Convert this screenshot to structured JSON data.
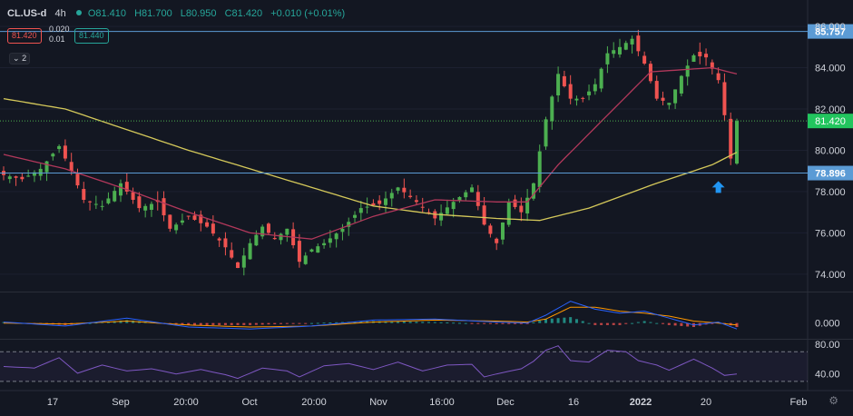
{
  "header": {
    "symbol": "CL.US-d",
    "timeframe": "4h",
    "open": "O81.410",
    "high": "H81.700",
    "low": "L80.950",
    "close": "C81.420",
    "change": "+0.010 (+0.01%)",
    "sell_price": "81.420",
    "buy_price": "81.440",
    "spread_top": "0.020",
    "spread_bottom": "0.01",
    "collapse_label": "2"
  },
  "colors": {
    "background": "#131722",
    "up": "#26a69a",
    "up_candle": "#4caf50",
    "down": "#ef5350",
    "ma_fast": "#b2385b",
    "ma_slow": "#d4c85a",
    "hline": "#5b9bd5",
    "rsi": "#7e57c2",
    "arrow": "#2196f3"
  },
  "chart_data": {
    "type": "candlestick",
    "price_axis_ticks": [
      "86.000",
      "84.000",
      "82.000",
      "80.000",
      "78.000",
      "76.000",
      "74.000"
    ],
    "price_range": [
      73.2,
      86.4
    ],
    "time_labels": [
      "17",
      "Sep",
      "20:00",
      "Oct",
      "20:00",
      "Nov",
      "16:00",
      "Dec",
      "16",
      "2022",
      "20",
      "Feb"
    ],
    "horizontal_lines": [
      {
        "label": "85.757",
        "value": 85.757
      },
      {
        "label": "78.896",
        "value": 78.896
      }
    ],
    "last_price": {
      "label": "81.420",
      "value": 81.42
    },
    "price_path": [
      [
        0,
        78.8
      ],
      [
        3,
        78.6
      ],
      [
        6,
        79.1
      ],
      [
        9,
        80.2
      ],
      [
        11,
        79.0
      ],
      [
        13,
        77.6
      ],
      [
        16,
        77.3
      ],
      [
        19,
        78.4
      ],
      [
        22,
        77.2
      ],
      [
        25,
        77.5
      ],
      [
        27,
        76.2
      ],
      [
        30,
        76.8
      ],
      [
        33,
        76.3
      ],
      [
        36,
        75.3
      ],
      [
        38,
        74.3
      ],
      [
        40,
        75.5
      ],
      [
        42,
        76.3
      ],
      [
        44,
        75.7
      ],
      [
        46,
        76.2
      ],
      [
        48,
        74.6
      ],
      [
        50,
        75.2
      ],
      [
        52,
        75.5
      ],
      [
        55,
        76.2
      ],
      [
        58,
        77.2
      ],
      [
        61,
        77.4
      ],
      [
        64,
        78.2
      ],
      [
        67,
        77.5
      ],
      [
        70,
        76.7
      ],
      [
        73,
        77.5
      ],
      [
        76,
        78.2
      ],
      [
        78,
        76.4
      ],
      [
        80,
        75.5
      ],
      [
        82,
        77.5
      ],
      [
        84,
        77.0
      ],
      [
        86,
        78.4
      ],
      [
        88,
        81.5
      ],
      [
        90,
        83.7
      ],
      [
        92,
        82.5
      ],
      [
        94,
        82.5
      ],
      [
        96,
        83.2
      ],
      [
        98,
        84.7
      ],
      [
        100,
        85.0
      ],
      [
        102,
        85.4
      ],
      [
        104,
        84.2
      ],
      [
        106,
        82.5
      ],
      [
        108,
        82.3
      ],
      [
        110,
        83.6
      ],
      [
        112,
        84.6
      ],
      [
        114,
        84.5
      ],
      [
        116,
        83.4
      ],
      [
        117,
        81.7
      ],
      [
        118,
        79.6
      ],
      [
        119,
        81.42
      ]
    ],
    "ma_fast": [
      [
        0,
        79.8
      ],
      [
        10,
        79.1
      ],
      [
        20,
        78.1
      ],
      [
        30,
        77.0
      ],
      [
        40,
        76.0
      ],
      [
        50,
        75.7
      ],
      [
        60,
        76.8
      ],
      [
        70,
        77.6
      ],
      [
        80,
        77.5
      ],
      [
        85,
        77.5
      ],
      [
        90,
        79.3
      ],
      [
        95,
        80.8
      ],
      [
        100,
        82.3
      ],
      [
        105,
        83.8
      ],
      [
        110,
        83.9
      ],
      [
        115,
        84.0
      ],
      [
        119,
        83.7
      ]
    ],
    "ma_slow": [
      [
        0,
        82.5
      ],
      [
        10,
        82.0
      ],
      [
        20,
        81.0
      ],
      [
        30,
        80.0
      ],
      [
        40,
        79.1
      ],
      [
        50,
        78.2
      ],
      [
        60,
        77.3
      ],
      [
        70,
        76.9
      ],
      [
        80,
        76.7
      ],
      [
        87,
        76.6
      ],
      [
        95,
        77.2
      ],
      [
        105,
        78.3
      ],
      [
        115,
        79.3
      ],
      [
        119,
        79.9
      ]
    ],
    "macd": {
      "axis_label": "0.000",
      "macd_line": [
        [
          0,
          0.1
        ],
        [
          10,
          -0.3
        ],
        [
          20,
          0.5
        ],
        [
          30,
          -0.4
        ],
        [
          40,
          -0.6
        ],
        [
          50,
          -0.3
        ],
        [
          60,
          0.3
        ],
        [
          70,
          0.4
        ],
        [
          80,
          0.1
        ],
        [
          85,
          0.0
        ],
        [
          88,
          0.8
        ],
        [
          92,
          2.2
        ],
        [
          96,
          1.4
        ],
        [
          100,
          1.0
        ],
        [
          104,
          1.2
        ],
        [
          108,
          0.5
        ],
        [
          112,
          -0.2
        ],
        [
          116,
          0.1
        ],
        [
          119,
          -0.6
        ]
      ],
      "signal_line": [
        [
          0,
          0.0
        ],
        [
          10,
          -0.1
        ],
        [
          20,
          0.2
        ],
        [
          30,
          -0.2
        ],
        [
          40,
          -0.4
        ],
        [
          50,
          -0.3
        ],
        [
          60,
          0.1
        ],
        [
          70,
          0.3
        ],
        [
          80,
          0.2
        ],
        [
          85,
          0.1
        ],
        [
          88,
          0.4
        ],
        [
          92,
          1.6
        ],
        [
          96,
          1.6
        ],
        [
          100,
          1.2
        ],
        [
          104,
          1.0
        ],
        [
          108,
          0.7
        ],
        [
          112,
          0.2
        ],
        [
          116,
          0.0
        ],
        [
          119,
          -0.2
        ]
      ],
      "range": [
        -1.5,
        3.0
      ]
    },
    "rsi": {
      "ticks": [
        "80.00",
        "40.00"
      ],
      "upper_band": 70,
      "lower_band": 30,
      "range": [
        20,
        85
      ],
      "values": [
        [
          0,
          50
        ],
        [
          5,
          48
        ],
        [
          9,
          62
        ],
        [
          12,
          41
        ],
        [
          16,
          52
        ],
        [
          20,
          44
        ],
        [
          24,
          47
        ],
        [
          28,
          40
        ],
        [
          32,
          46
        ],
        [
          36,
          39
        ],
        [
          38,
          34
        ],
        [
          42,
          48
        ],
        [
          46,
          44
        ],
        [
          48,
          36
        ],
        [
          52,
          51
        ],
        [
          56,
          54
        ],
        [
          60,
          46
        ],
        [
          64,
          56
        ],
        [
          68,
          44
        ],
        [
          72,
          52
        ],
        [
          76,
          53
        ],
        [
          78,
          36
        ],
        [
          80,
          40
        ],
        [
          84,
          47
        ],
        [
          86,
          57
        ],
        [
          88,
          72
        ],
        [
          90,
          78
        ],
        [
          92,
          58
        ],
        [
          95,
          56
        ],
        [
          98,
          72
        ],
        [
          101,
          70
        ],
        [
          103,
          58
        ],
        [
          106,
          52
        ],
        [
          108,
          45
        ],
        [
          112,
          60
        ],
        [
          115,
          48
        ],
        [
          117,
          38
        ],
        [
          119,
          40
        ]
      ]
    }
  }
}
